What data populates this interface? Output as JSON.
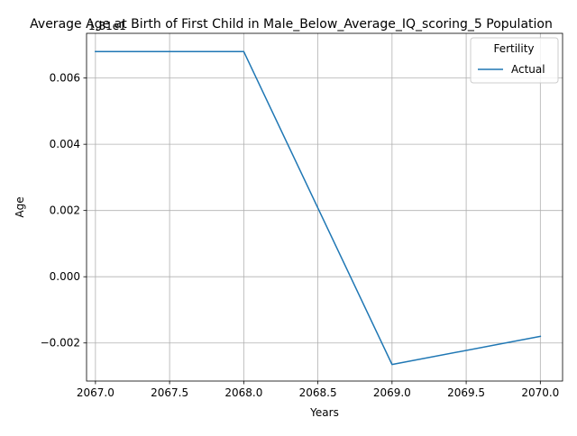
{
  "chart_data": {
    "type": "line",
    "title": "Average Age at Birth of First Child in Male_Below_Average_IQ_scoring_5 Population",
    "xlabel": "Years",
    "ylabel": "Age",
    "offset_text": "1.81e1",
    "x": [
      2067,
      2068,
      2069,
      2070
    ],
    "x_ticks": [
      "2067.0",
      "2067.5",
      "2068.0",
      "2068.5",
      "2069.0",
      "2069.5",
      "2070.0"
    ],
    "y_ticks": [
      "−0.002",
      "0.000",
      "0.002",
      "0.004",
      "0.006"
    ],
    "xlim": [
      2066.94,
      2070.15
    ],
    "ylim_relative": [
      -0.00315,
      0.00735
    ],
    "grid": true,
    "legend": {
      "title": "Fertility",
      "placement": "top-right"
    },
    "series": [
      {
        "name": "Actual",
        "color": "#1f77b4",
        "values_relative": [
          0.0068,
          0.0068,
          -0.00265,
          -0.0018
        ]
      }
    ]
  }
}
